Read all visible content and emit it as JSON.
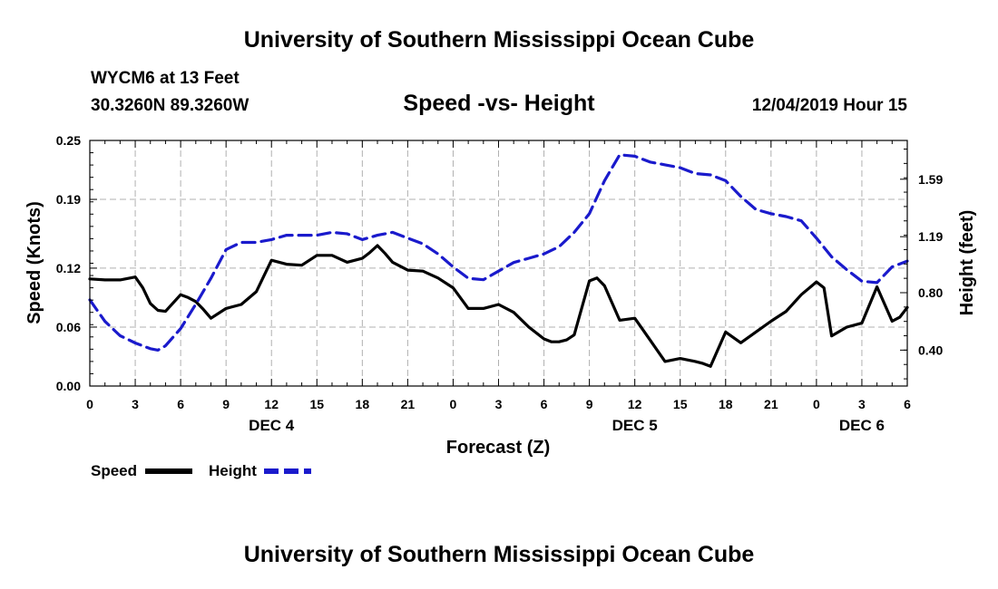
{
  "header": {
    "top_title": "University of Southern Mississippi Ocean Cube",
    "bottom_title": "University of Southern Mississippi Ocean Cube",
    "station": "WYCM6 at 13 Feet",
    "coordinates": "30.3260N 89.3260W",
    "subtitle": "Speed -vs- Height",
    "datetime": "12/04/2019 Hour 15"
  },
  "colors": {
    "speed": "#000000",
    "height": "#1a1acc",
    "grid": "#b0b0b0"
  },
  "chart_data": {
    "type": "line",
    "title": "Speed -vs- Height",
    "xlabel": "Forecast (Z)",
    "ylabel": "Speed (Knots)",
    "y2label": "Height (feet)",
    "xlim": [
      0,
      54
    ],
    "ylim": [
      0.0,
      0.25
    ],
    "y2lim": [
      0.15,
      1.86
    ],
    "x_ticks": [
      0,
      3,
      6,
      9,
      12,
      15,
      18,
      21,
      24,
      27,
      30,
      33,
      36,
      39,
      42,
      45,
      48,
      51,
      54
    ],
    "x_tick_labels": [
      "0",
      "3",
      "6",
      "9",
      "12",
      "15",
      "18",
      "21",
      "0",
      "3",
      "6",
      "9",
      "12",
      "15",
      "18",
      "21",
      "0",
      "3",
      "6"
    ],
    "y_ticks": [
      "0.00",
      "0.06",
      "0.12",
      "0.19",
      "0.25"
    ],
    "y_tick_values": [
      0.0,
      0.06,
      0.12,
      0.19,
      0.25
    ],
    "y2_ticks": [
      "0.40",
      "0.80",
      "1.19",
      "1.59"
    ],
    "y2_tick_values": [
      0.4,
      0.8,
      1.19,
      1.59
    ],
    "day_labels": [
      {
        "label": "DEC 4",
        "x": 12
      },
      {
        "label": "DEC 5",
        "x": 36
      },
      {
        "label": "DEC 6",
        "x": 51
      }
    ],
    "legend": [
      {
        "name": "Speed",
        "style": "solid"
      },
      {
        "name": "Height",
        "style": "dashed"
      }
    ],
    "series": [
      {
        "name": "Speed",
        "axis": "left",
        "style": "solid",
        "x": [
          0,
          1,
          2,
          3,
          3.5,
          4,
          4.5,
          5,
          6,
          6.5,
          7,
          7.5,
          8,
          9,
          10,
          11,
          12,
          13,
          14,
          15,
          16,
          17,
          18,
          18.5,
          19,
          19.5,
          20,
          21,
          22,
          23,
          24,
          25,
          26,
          27,
          28,
          29,
          30,
          30.5,
          31,
          31.5,
          32,
          33,
          33.5,
          34,
          35,
          36,
          37,
          38,
          39,
          40,
          40.5,
          41,
          42,
          43,
          44,
          45,
          45.5,
          46,
          47,
          48,
          48.5,
          49,
          50,
          51,
          52,
          53,
          53.5,
          54
        ],
        "values": [
          0.109,
          0.108,
          0.108,
          0.111,
          0.1,
          0.084,
          0.077,
          0.076,
          0.093,
          0.09,
          0.086,
          0.078,
          0.069,
          0.079,
          0.083,
          0.096,
          0.128,
          0.124,
          0.123,
          0.133,
          0.133,
          0.126,
          0.13,
          0.136,
          0.143,
          0.135,
          0.126,
          0.118,
          0.117,
          0.11,
          0.1,
          0.079,
          0.079,
          0.083,
          0.075,
          0.06,
          0.048,
          0.045,
          0.045,
          0.047,
          0.052,
          0.107,
          0.11,
          0.102,
          0.067,
          0.069,
          0.047,
          0.025,
          0.028,
          0.025,
          0.023,
          0.02,
          0.055,
          0.044,
          0.055,
          0.066,
          0.071,
          0.076,
          0.093,
          0.106,
          0.1,
          0.051,
          0.06,
          0.064,
          0.101,
          0.066,
          0.07,
          0.08
        ]
      },
      {
        "name": "Height",
        "axis": "right",
        "style": "dashed",
        "x": [
          0,
          1,
          2,
          3,
          4,
          4.5,
          5,
          6,
          7,
          8,
          9,
          10,
          11,
          12,
          13,
          14,
          15,
          16,
          17,
          18,
          19,
          20,
          21,
          22,
          23,
          24,
          25,
          26,
          27,
          28,
          29,
          30,
          31,
          32,
          33,
          34,
          35,
          36,
          37,
          38,
          39,
          40,
          41,
          42,
          43,
          44,
          45,
          46,
          47,
          48,
          49,
          50,
          51,
          52,
          53,
          54
        ],
        "values": [
          0.75,
          0.6,
          0.5,
          0.45,
          0.41,
          0.4,
          0.43,
          0.55,
          0.72,
          0.9,
          1.1,
          1.15,
          1.15,
          1.17,
          1.2,
          1.2,
          1.2,
          1.22,
          1.21,
          1.17,
          1.2,
          1.22,
          1.18,
          1.14,
          1.07,
          0.98,
          0.9,
          0.89,
          0.95,
          1.01,
          1.04,
          1.07,
          1.12,
          1.22,
          1.35,
          1.58,
          1.76,
          1.75,
          1.71,
          1.69,
          1.67,
          1.63,
          1.62,
          1.58,
          1.47,
          1.38,
          1.35,
          1.33,
          1.3,
          1.18,
          1.05,
          0.96,
          0.88,
          0.87,
          0.98,
          1.02
        ]
      }
    ]
  }
}
